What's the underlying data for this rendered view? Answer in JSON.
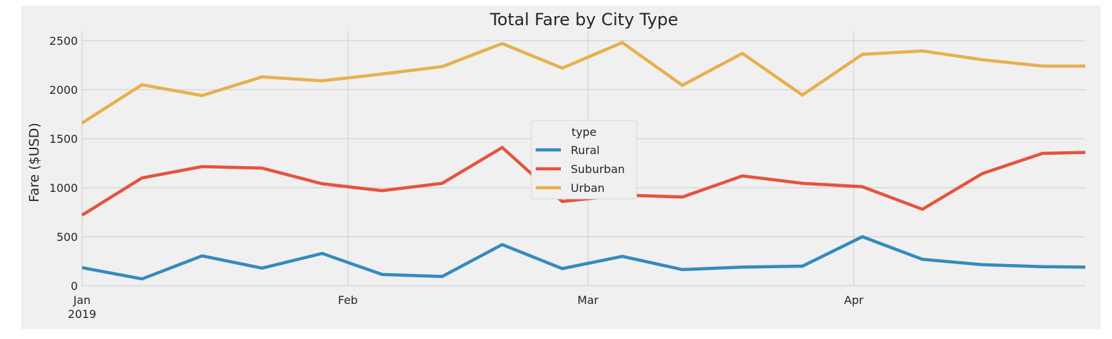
{
  "chart_data": {
    "type": "line",
    "title": "Total Fare by City Type",
    "xlabel": "",
    "ylabel": "Fare ($USD)",
    "ylim": [
      0,
      2600
    ],
    "yticks": [
      0,
      500,
      1000,
      1500,
      2000,
      2500
    ],
    "x_tick_labels": [
      {
        "date": "2019-01-01",
        "label": "Jan",
        "sublabel": "2019"
      },
      {
        "date": "2019-02-01",
        "label": "Feb",
        "sublabel": ""
      },
      {
        "date": "2019-03-01",
        "label": "Mar",
        "sublabel": ""
      },
      {
        "date": "2019-04-01",
        "label": "Apr",
        "sublabel": ""
      }
    ],
    "xlim": [
      "2019-01-01",
      "2019-04-28"
    ],
    "x": [
      "2019-01-01",
      "2019-01-08",
      "2019-01-15",
      "2019-01-22",
      "2019-01-29",
      "2019-02-05",
      "2019-02-12",
      "2019-02-19",
      "2019-02-26",
      "2019-03-05",
      "2019-03-12",
      "2019-03-19",
      "2019-03-26",
      "2019-04-02",
      "2019-04-09",
      "2019-04-16",
      "2019-04-23",
      "2019-04-28"
    ],
    "legend_title": "type",
    "legend_position": "center",
    "grid": true,
    "background": "#f0f0f0",
    "series": [
      {
        "name": "Rural",
        "color": "#348abd",
        "values": [
          185,
          70,
          305,
          180,
          330,
          115,
          95,
          420,
          175,
          300,
          165,
          190,
          200,
          500,
          270,
          215,
          195,
          190
        ]
      },
      {
        "name": "Suburban",
        "color": "#e5533c",
        "values": [
          720,
          1100,
          1215,
          1200,
          1040,
          970,
          1045,
          1410,
          860,
          925,
          905,
          1120,
          1045,
          1010,
          780,
          1145,
          1350,
          1360
        ]
      },
      {
        "name": "Urban",
        "color": "#e6b04c",
        "values": [
          1660,
          2050,
          1940,
          2130,
          2090,
          2160,
          2235,
          2470,
          2220,
          2480,
          2045,
          2370,
          1945,
          2360,
          2395,
          2305,
          2240,
          2240
        ]
      }
    ]
  }
}
